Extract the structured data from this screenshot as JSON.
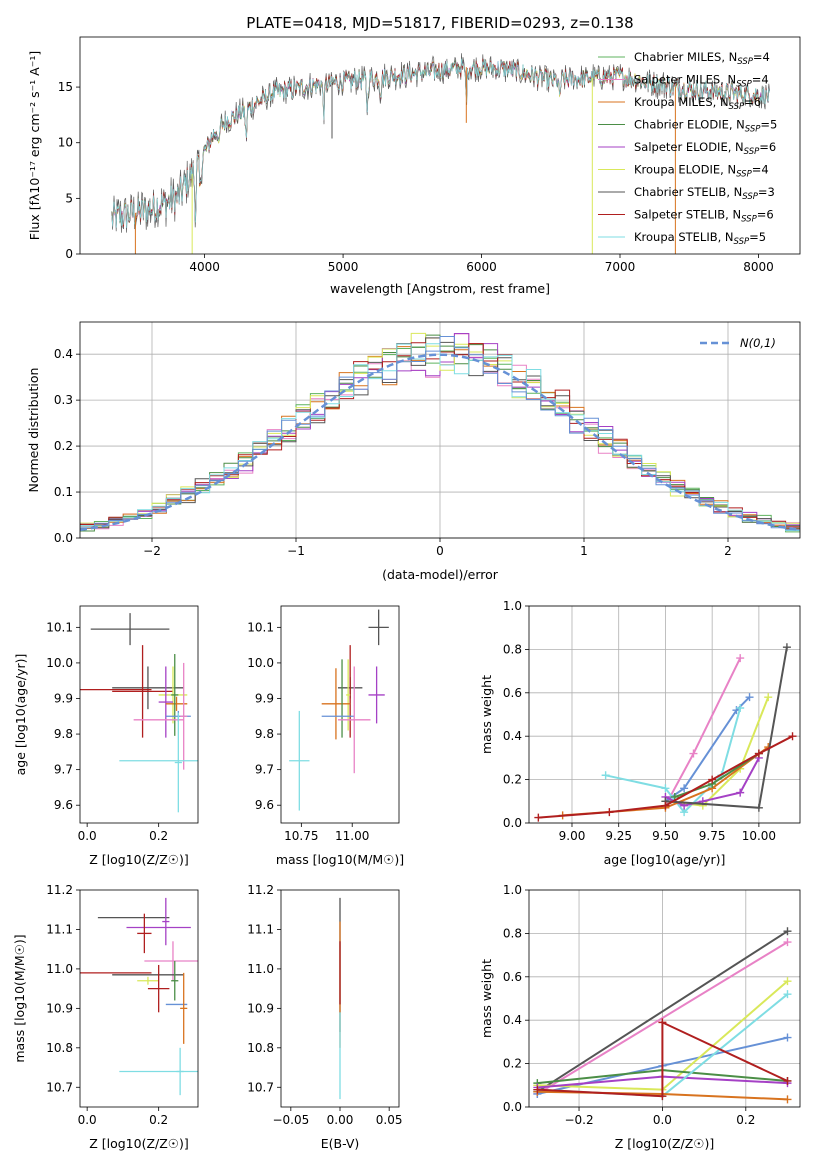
{
  "figure": {
    "title": "PLATE=0418, MJD=51817, FIBERID=0293, z=0.138"
  },
  "chart_data": [
    {
      "type": "line",
      "name": "spectrum",
      "xlabel": "wavelength [Angstrom, rest frame]",
      "ylabel": "Flux [fλ10⁻¹⁷ erg cm⁻² s⁻¹ A⁻¹]",
      "xlim": [
        3100,
        8300
      ],
      "ylim": [
        0,
        19.5
      ],
      "xticks": [
        4000,
        5000,
        6000,
        7000,
        8000
      ],
      "yticks": [
        0,
        5,
        10,
        15
      ],
      "grid": false,
      "legend_position": "top-right",
      "wavelength_range": [
        3330,
        8080
      ],
      "continuum_x": [
        3330,
        3600,
        3800,
        3950,
        4100,
        4300,
        4500,
        4800,
        5000,
        5500,
        5900,
        6200,
        6500,
        7000,
        7200,
        7500,
        8080
      ],
      "continuum_y": [
        3.2,
        4.0,
        5.0,
        8.0,
        11.5,
        13.0,
        14.5,
        15.2,
        15.5,
        16.2,
        16.8,
        16.6,
        15.6,
        16.0,
        15.4,
        14.8,
        14.2
      ],
      "series": [
        {
          "name": "Chabrier MILES, N_SSP=4",
          "color": "#5fb35f"
        },
        {
          "name": "Salpeter MILES, N_SSP=4",
          "color": "#e882c6"
        },
        {
          "name": "Kroupa MILES, N_SSP=6",
          "color": "#d8731f"
        },
        {
          "name": "Chabrier ELODIE, N_SSP=5",
          "color": "#4b8e46"
        },
        {
          "name": "Salpeter ELODIE, N_SSP=6",
          "color": "#a541c5"
        },
        {
          "name": "Kroupa ELODIE, N_SSP=4",
          "color": "#d9e85a"
        },
        {
          "name": "Chabrier STELIB, N_SSP=3",
          "color": "#555555"
        },
        {
          "name": "Salpeter STELIB, N_SSP=6",
          "color": "#b01f1f"
        },
        {
          "name": "Kroupa STELIB, N_SSP=5",
          "color": "#7fdde3"
        }
      ]
    },
    {
      "type": "step",
      "name": "residuals",
      "xlabel": "(data-model)/error",
      "ylabel": "Normed distribution",
      "xlim": [
        -2.5,
        2.5
      ],
      "ylim": [
        0,
        0.47
      ],
      "xticks": [
        -2,
        -1,
        0,
        1,
        2
      ],
      "yticks": [
        0.0,
        0.1,
        0.2,
        0.3,
        0.4
      ],
      "grid": true,
      "legend_position": "top-right",
      "reference": {
        "name": "N(0,1)",
        "color": "#6691d6"
      },
      "bin_width": 0.1,
      "colors": [
        "#5fb35f",
        "#e882c6",
        "#d8731f",
        "#4b8e46",
        "#a541c5",
        "#d9e85a",
        "#555555",
        "#b01f1f",
        "#7fdde3",
        "#6691d6"
      ]
    },
    {
      "type": "errorbar",
      "name": "age-vs-Z",
      "xlabel": "Z [log10(Z/Z☉)]",
      "ylabel": "age [log10(age/yr)]",
      "xlim": [
        -0.02,
        0.31
      ],
      "ylim": [
        9.55,
        10.16
      ],
      "xticks": [
        0.0,
        0.2
      ],
      "yticks": [
        9.6,
        9.7,
        9.8,
        9.9,
        10.0,
        10.1
      ],
      "points": [
        {
          "x": 0.12,
          "xerr": 0.11,
          "y": 10.095,
          "yerr": 0.045,
          "color": "#555555"
        },
        {
          "x": 0.17,
          "xerr": 0.1,
          "y": 9.93,
          "yerr": 0.06,
          "color": "#555555"
        },
        {
          "x": 0.155,
          "xerr": 0.085,
          "y": 9.92,
          "yerr": 0.13,
          "color": "#b01f1f"
        },
        {
          "x": 0.08,
          "xerr": 0.1,
          "y": 9.925,
          "yerr": 0.0,
          "color": "#b01f1f"
        },
        {
          "x": 0.24,
          "xerr": 0.04,
          "y": 9.91,
          "yerr": 0.08,
          "color": "#d9e85a"
        },
        {
          "x": 0.22,
          "xerr": 0.02,
          "y": 9.89,
          "yerr": 0.1,
          "color": "#a541c5"
        },
        {
          "x": 0.25,
          "xerr": 0.03,
          "y": 9.885,
          "yerr": 0.02,
          "color": "#d8731f"
        },
        {
          "x": 0.245,
          "xerr": 0.01,
          "y": 9.91,
          "yerr": 0.115,
          "color": "#4b8e46"
        },
        {
          "x": 0.255,
          "xerr": 0.035,
          "y": 9.85,
          "yerr": 0.015,
          "color": "#6691d6"
        },
        {
          "x": 0.2,
          "xerr": 0.07,
          "y": 9.84,
          "yerr": 0.0,
          "color": "#e882c6"
        },
        {
          "x": 0.27,
          "xerr": 0.01,
          "y": 9.85,
          "yerr": 0.15,
          "color": "#e882c6"
        },
        {
          "x": 0.2,
          "xerr": 0.11,
          "y": 9.725,
          "yerr": 0.0,
          "color": "#7fdde3"
        },
        {
          "x": 0.255,
          "xerr": 0.01,
          "y": 9.72,
          "yerr": 0.14,
          "color": "#7fdde3"
        }
      ]
    },
    {
      "type": "errorbar",
      "name": "age-vs-mass",
      "xlabel": "mass [log10(M/M☉)]",
      "ylabel": "",
      "xlim": [
        10.65,
        11.23
      ],
      "ylim": [
        9.55,
        10.16
      ],
      "xticks": [
        10.75,
        11.0
      ],
      "yticks": [
        9.6,
        9.7,
        9.8,
        9.9,
        10.0,
        10.1
      ],
      "points": [
        {
          "x": 11.13,
          "xerr": 0.05,
          "y": 10.1,
          "yerr": 0.05,
          "color": "#555555"
        },
        {
          "x": 10.99,
          "xerr": 0.06,
          "y": 9.93,
          "yerr": 0.03,
          "color": "#555555"
        },
        {
          "x": 10.99,
          "xerr": 0.0,
          "y": 9.92,
          "yerr": 0.13,
          "color": "#b01f1f"
        },
        {
          "x": 10.98,
          "xerr": 0.01,
          "y": 9.91,
          "yerr": 0.1,
          "color": "#d9e85a"
        },
        {
          "x": 10.92,
          "xerr": 0.07,
          "y": 9.885,
          "yerr": 0.1,
          "color": "#d8731f"
        },
        {
          "x": 10.95,
          "xerr": 0.0,
          "y": 9.9,
          "yerr": 0.11,
          "color": "#4b8e46"
        },
        {
          "x": 11.12,
          "xerr": 0.04,
          "y": 9.91,
          "yerr": 0.08,
          "color": "#a541c5"
        },
        {
          "x": 10.93,
          "xerr": 0.08,
          "y": 9.85,
          "yerr": 0.0,
          "color": "#6691d6"
        },
        {
          "x": 11.01,
          "xerr": 0.08,
          "y": 9.84,
          "yerr": 0.15,
          "color": "#e882c6"
        },
        {
          "x": 10.74,
          "xerr": 0.05,
          "y": 9.725,
          "yerr": 0.14,
          "color": "#7fdde3"
        }
      ]
    },
    {
      "type": "line",
      "name": "weights-vs-age",
      "xlabel": "age [log10(age/yr)]",
      "ylabel": "mass weight",
      "xlim": [
        8.77,
        10.22
      ],
      "ylim": [
        0,
        1.0
      ],
      "xticks": [
        9.0,
        9.25,
        9.5,
        9.75,
        10.0
      ],
      "yticks": [
        0.0,
        0.2,
        0.4,
        0.6,
        0.8,
        1.0
      ],
      "grid": true,
      "series": [
        {
          "color": "#e882c6",
          "x": [
            9.5,
            9.65,
            9.9
          ],
          "y": [
            0.08,
            0.32,
            0.76
          ]
        },
        {
          "color": "#6691d6",
          "x": [
            9.5,
            9.6,
            9.88,
            9.95
          ],
          "y": [
            0.1,
            0.16,
            0.52,
            0.58
          ]
        },
        {
          "color": "#7fdde3",
          "x": [
            9.18,
            9.5,
            9.6,
            9.8,
            9.9
          ],
          "y": [
            0.22,
            0.16,
            0.05,
            0.22,
            0.53
          ]
        },
        {
          "color": "#d9e85a",
          "x": [
            9.5,
            9.7,
            9.9,
            10.05
          ],
          "y": [
            0.1,
            0.08,
            0.25,
            0.58
          ]
        },
        {
          "color": "#a541c5",
          "x": [
            9.5,
            9.6,
            9.7,
            9.9,
            10.0
          ],
          "y": [
            0.12,
            0.08,
            0.1,
            0.14,
            0.3
          ]
        },
        {
          "color": "#d8731f",
          "x": [
            8.95,
            9.5,
            9.75,
            10.05
          ],
          "y": [
            0.035,
            0.07,
            0.16,
            0.35
          ]
        },
        {
          "color": "#4b8e46",
          "x": [
            9.55,
            9.75,
            10.0
          ],
          "y": [
            0.12,
            0.18,
            0.32
          ]
        },
        {
          "color": "#555555",
          "x": [
            9.5,
            10.0,
            10.15
          ],
          "y": [
            0.1,
            0.07,
            0.81
          ]
        },
        {
          "color": "#b01f1f",
          "x": [
            8.82,
            9.2,
            9.5,
            9.75,
            10.0,
            10.18
          ],
          "y": [
            0.025,
            0.05,
            0.08,
            0.2,
            0.32,
            0.4
          ]
        }
      ]
    },
    {
      "type": "errorbar",
      "name": "mass-vs-Z",
      "xlabel": "Z [log10(Z/Z☉)]",
      "ylabel": "mass [log10(M/M☉)]",
      "xlim": [
        -0.02,
        0.31
      ],
      "ylim": [
        10.65,
        11.2
      ],
      "xticks": [
        0.0,
        0.2
      ],
      "yticks": [
        10.7,
        10.8,
        10.9,
        11.0,
        11.1,
        11.2
      ],
      "points": [
        {
          "x": 0.13,
          "xerr": 0.1,
          "y": 11.13,
          "yerr": 0.0,
          "color": "#555555"
        },
        {
          "x": 0.2,
          "xerr": 0.09,
          "y": 11.105,
          "yerr": 0.0,
          "color": "#a541c5"
        },
        {
          "x": 0.22,
          "xerr": 0.01,
          "y": 11.12,
          "yerr": 0.06,
          "color": "#a541c5"
        },
        {
          "x": 0.16,
          "xerr": 0.02,
          "y": 11.09,
          "yerr": 0.05,
          "color": "#b01f1f"
        },
        {
          "x": 0.24,
          "xerr": 0.08,
          "y": 11.02,
          "yerr": 0.05,
          "color": "#e882c6"
        },
        {
          "x": 0.08,
          "xerr": 0.1,
          "y": 10.99,
          "yerr": 0.0,
          "color": "#b01f1f"
        },
        {
          "x": 0.17,
          "xerr": 0.1,
          "y": 10.985,
          "yerr": 0.0,
          "color": "#555555"
        },
        {
          "x": 0.17,
          "xerr": 0.03,
          "y": 10.97,
          "yerr": 0.01,
          "color": "#d9e85a"
        },
        {
          "x": 0.2,
          "xerr": 0.03,
          "y": 10.95,
          "yerr": 0.06,
          "color": "#b01f1f"
        },
        {
          "x": 0.25,
          "xerr": 0.03,
          "y": 10.91,
          "yerr": 0.0,
          "color": "#6691d6"
        },
        {
          "x": 0.27,
          "xerr": 0.01,
          "y": 10.9,
          "yerr": 0.09,
          "color": "#d8731f"
        },
        {
          "x": 0.245,
          "xerr": 0.01,
          "y": 10.97,
          "yerr": 0.05,
          "color": "#4b8e46"
        },
        {
          "x": 0.2,
          "xerr": 0.11,
          "y": 10.74,
          "yerr": 0.0,
          "color": "#7fdde3"
        },
        {
          "x": 0.26,
          "xerr": 0.01,
          "y": 10.74,
          "yerr": 0.06,
          "color": "#7fdde3"
        }
      ]
    },
    {
      "type": "errorbar",
      "name": "mass-vs-ebv",
      "xlabel": "E(B-V)",
      "ylabel": "",
      "xlim": [
        -0.06,
        0.06
      ],
      "ylim": [
        10.65,
        11.2
      ],
      "xticks": [
        -0.05,
        0.0,
        0.05
      ],
      "yticks": [
        10.7,
        10.8,
        10.9,
        11.0,
        11.1,
        11.2
      ],
      "points": [
        {
          "x": 0.0,
          "xerr": 0.0,
          "y": 11.01,
          "yerr": 0.17,
          "color": "#555555"
        },
        {
          "x": 0.0,
          "xerr": 0.0,
          "y": 10.96,
          "yerr": 0.16,
          "color": "#d8731f"
        },
        {
          "x": 0.0,
          "xerr": 0.0,
          "y": 10.99,
          "yerr": 0.08,
          "color": "#b01f1f"
        },
        {
          "x": 0.0,
          "xerr": 0.0,
          "y": 10.78,
          "yerr": 0.11,
          "color": "#7fdde3"
        }
      ]
    },
    {
      "type": "line",
      "name": "weights-vs-Z",
      "xlabel": "Z [log10(Z/Z☉)]",
      "ylabel": "mass weight",
      "xlim": [
        -0.32,
        0.33
      ],
      "ylim": [
        0,
        1.0
      ],
      "xticks": [
        -0.2,
        0.0,
        0.2
      ],
      "yticks": [
        0.0,
        0.2,
        0.4,
        0.6,
        0.8,
        1.0
      ],
      "grid": true,
      "series": [
        {
          "color": "#555555",
          "x": [
            -0.3,
            0.3
          ],
          "y": [
            0.07,
            0.81
          ]
        },
        {
          "color": "#e882c6",
          "x": [
            -0.3,
            0.3
          ],
          "y": [
            0.06,
            0.76
          ]
        },
        {
          "color": "#6691d6",
          "x": [
            -0.3,
            0.0,
            0.3
          ],
          "y": [
            0.06,
            0.19,
            0.32
          ]
        },
        {
          "color": "#d9e85a",
          "x": [
            -0.3,
            0.0,
            0.3
          ],
          "y": [
            0.1,
            0.08,
            0.58
          ]
        },
        {
          "color": "#4b8e46",
          "x": [
            -0.3,
            0.0,
            0.3
          ],
          "y": [
            0.11,
            0.17,
            0.12
          ]
        },
        {
          "color": "#a541c5",
          "x": [
            -0.3,
            0.0,
            0.3
          ],
          "y": [
            0.09,
            0.14,
            0.11
          ]
        },
        {
          "color": "#7fdde3",
          "x": [
            -0.3,
            0.0,
            0.3
          ],
          "y": [
            0.08,
            0.05,
            0.52
          ]
        },
        {
          "color": "#d8731f",
          "x": [
            -0.3,
            0.0,
            0.3
          ],
          "y": [
            0.07,
            0.06,
            0.035
          ]
        },
        {
          "color": "#b01f1f",
          "x": [
            -0.3,
            0.0,
            0.0,
            0.3
          ],
          "y": [
            0.08,
            0.05,
            0.39,
            0.12
          ]
        }
      ]
    }
  ]
}
